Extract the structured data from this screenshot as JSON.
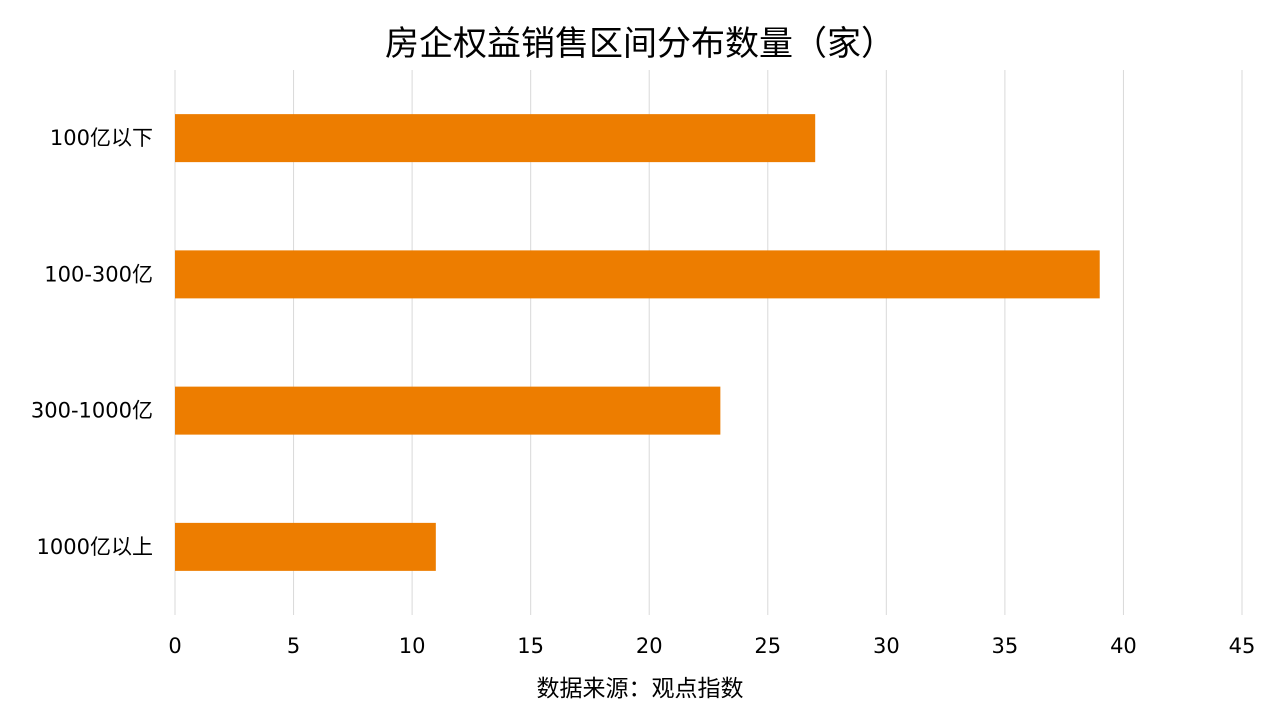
{
  "chart_data": {
    "type": "bar",
    "orientation": "horizontal",
    "title": "房企权益销售区间分布数量（家）",
    "categories": [
      "100亿以下",
      "100-300亿",
      "300-1000亿",
      "1000亿以上"
    ],
    "values": [
      27,
      39,
      23,
      11
    ],
    "xlim": [
      0,
      45
    ],
    "x_ticks": [
      0,
      5,
      10,
      15,
      20,
      25,
      30,
      35,
      40,
      45
    ],
    "grid": "vertical",
    "legend": "none",
    "bar_color": "#ED7D00",
    "grid_color": "#D9D9D9",
    "source_note": "数据来源：观点指数"
  }
}
